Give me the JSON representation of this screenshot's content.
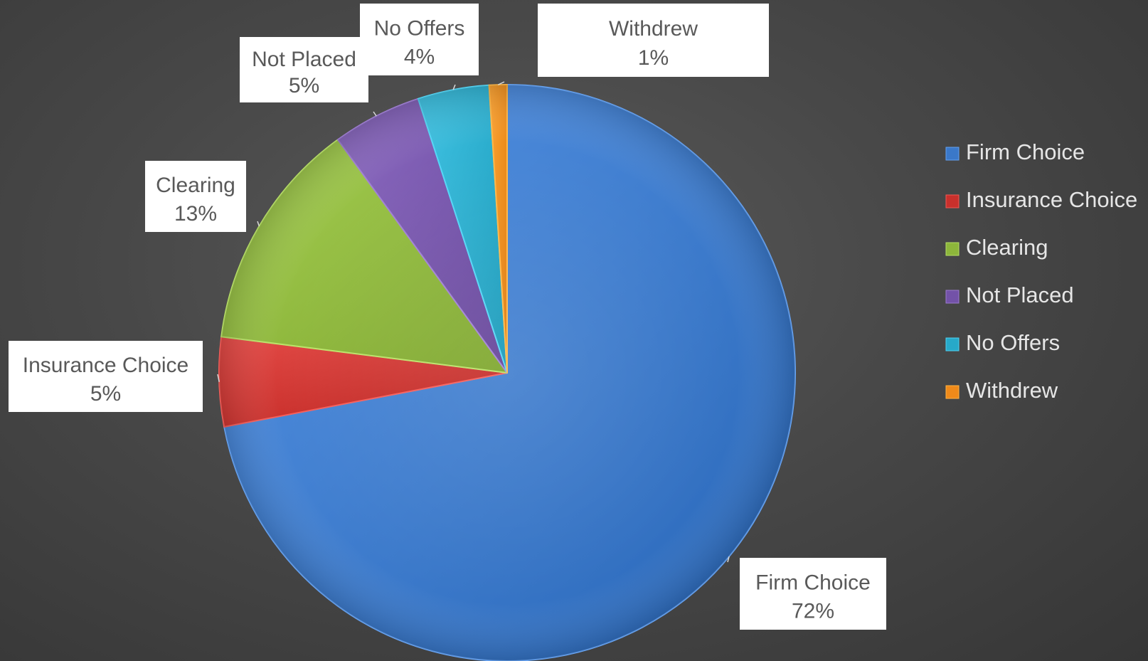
{
  "chart_data": {
    "type": "pie",
    "title": "",
    "slices": [
      {
        "name": "Firm Choice",
        "value": 72,
        "label_value": "72%",
        "color": "#3a78c9"
      },
      {
        "name": "Insurance Choice",
        "value": 5,
        "label_value": "5%",
        "color": "#c9302c"
      },
      {
        "name": "Clearing",
        "value": 13,
        "label_value": "13%",
        "color": "#8db63b"
      },
      {
        "name": "Not Placed",
        "value": 5,
        "label_value": "5%",
        "color": "#7352a8"
      },
      {
        "name": "No Offers",
        "value": 4,
        "label_value": "4%",
        "color": "#27a9c9"
      },
      {
        "name": "Withdrew",
        "value": 1,
        "label_value": "1%",
        "color": "#ef8a1a"
      }
    ],
    "legend": {
      "position": "right",
      "items": [
        "Firm Choice",
        "Insurance Choice",
        "Clearing",
        "Not Placed",
        "No Offers",
        "Withdrew"
      ]
    },
    "start_angle_deg": 0,
    "direction": "clockwise"
  }
}
